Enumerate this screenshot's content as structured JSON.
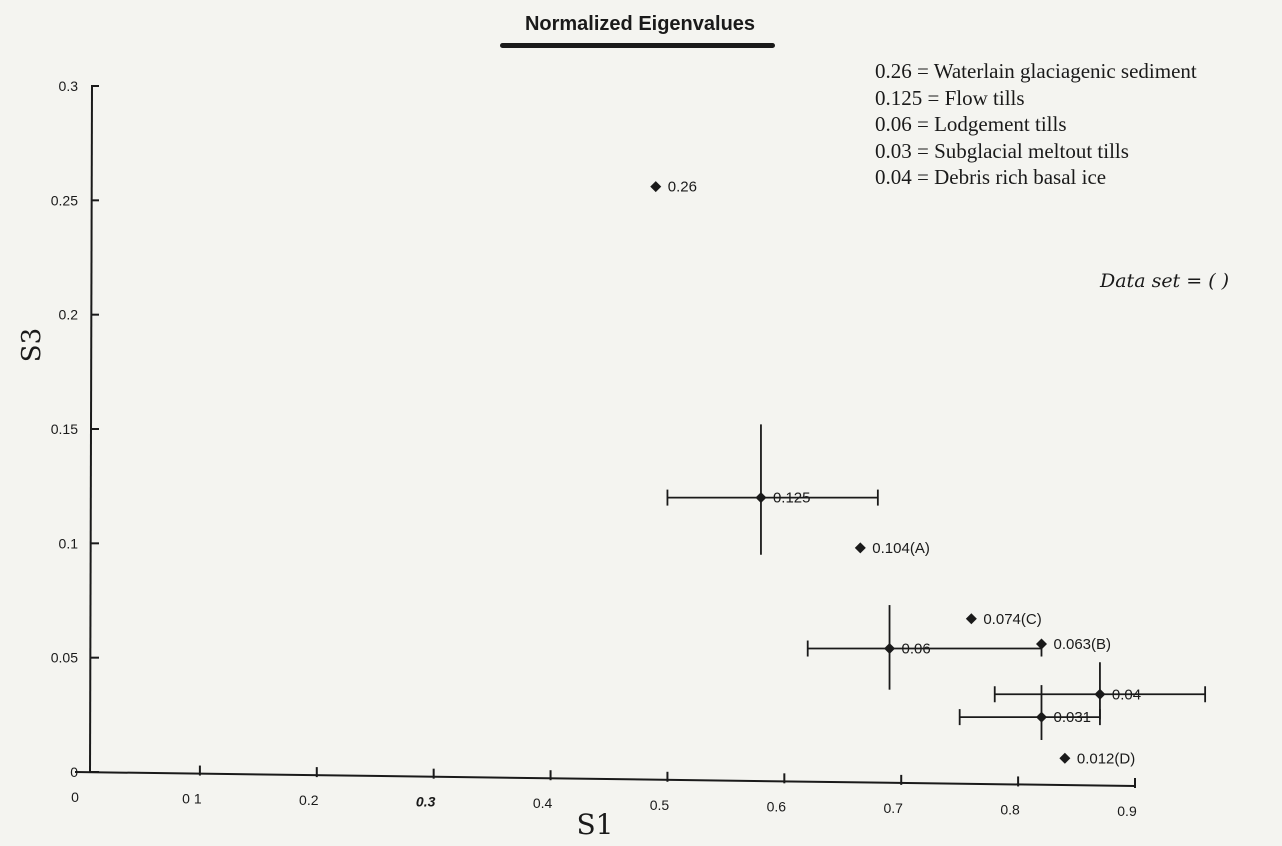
{
  "chart_data": {
    "type": "scatter",
    "title": "Normalized Eigenvalues",
    "xlabel": "S1",
    "ylabel": "S3",
    "xlim": [
      0,
      0.9
    ],
    "ylim": [
      0,
      0.3
    ],
    "x_ticks": [
      "0",
      "0 1",
      "0.2",
      "0.3",
      "0.4",
      "0.5",
      "0.6",
      "0.7",
      "0.8",
      "0.9"
    ],
    "y_ticks": [
      "0",
      "0.05",
      "0.1",
      "0.15",
      "0.2",
      "0.25",
      "0.3"
    ],
    "grid": false,
    "points": [
      {
        "label": "0.26",
        "x": 0.49,
        "y": 0.256
      },
      {
        "label": "0.125",
        "x": 0.58,
        "y": 0.12,
        "x_err": [
          0.5,
          0.68
        ],
        "y_err": [
          0.095,
          0.152
        ]
      },
      {
        "label": "0.104(A)",
        "x": 0.665,
        "y": 0.098
      },
      {
        "label": "0.074(C)",
        "x": 0.76,
        "y": 0.067
      },
      {
        "label": "0.063(B)",
        "x": 0.82,
        "y": 0.056
      },
      {
        "label": "0.06",
        "x": 0.69,
        "y": 0.054,
        "x_err": [
          0.62,
          0.82
        ],
        "y_err": [
          0.036,
          0.073
        ]
      },
      {
        "label": "0.04",
        "x": 0.87,
        "y": 0.034,
        "x_err": [
          0.78,
          0.96
        ],
        "y_err": [
          0.023,
          0.048
        ]
      },
      {
        "label": "0.031",
        "x": 0.82,
        "y": 0.024,
        "x_err": [
          0.75,
          0.87
        ],
        "y_err": [
          0.014,
          0.038
        ]
      },
      {
        "label": "0.012(D)",
        "x": 0.84,
        "y": 0.006
      }
    ],
    "legend": [
      "0.26 = Waterlain glaciagenic sediment",
      "0.125 = Flow  tills",
      "0.06 = Lodgement tills",
      "0.03 = Subglacial meltout tills",
      "0.04 = Debris rich basal  ice"
    ],
    "annotation": "Data set = (  )"
  },
  "colors": {
    "ink": "#1a1a1a",
    "paper": "#f4f4f0",
    "errorbar_accent": "#7a3a55"
  }
}
